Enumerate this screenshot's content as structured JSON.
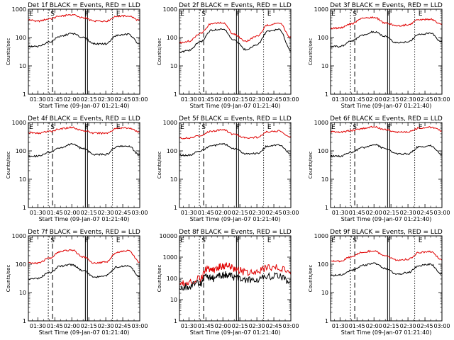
{
  "colors": {
    "events": "#000000",
    "lld": "#e00000",
    "background": "#ffffff"
  },
  "chart_data": [
    {
      "type": "line",
      "title": "Det 1f BLACK = Events, RED = LLD",
      "xlabel": "Start Time (09-Jan-07 01:21:40)",
      "ylabel": "Counts/sec",
      "xlim": [
        "01:21:40",
        "03:00"
      ],
      "xticks": [
        "01:30",
        "01:45",
        "02:00",
        "02:15",
        "02:30",
        "02:45",
        "03:00"
      ],
      "yscale": "log",
      "ylim": [
        1,
        1000
      ],
      "yticks": [
        "1",
        "10",
        "100",
        "1000"
      ],
      "markers": [
        {
          "time": "01:21:40",
          "label": "E"
        },
        {
          "time": "01:43",
          "label": "S"
        },
        {
          "time": "02:12",
          "label": "F"
        },
        {
          "time": "02:41",
          "label": "E"
        }
      ],
      "series": [
        {
          "color": "#e00000",
          "x": [
            "01:22",
            "01:30",
            "01:40",
            "01:50",
            "02:00",
            "02:10",
            "02:20",
            "02:30",
            "02:40",
            "02:50",
            "03:00"
          ],
          "values": [
            420,
            380,
            450,
            570,
            650,
            500,
            380,
            380,
            560,
            580,
            400
          ]
        },
        {
          "color": "#000000",
          "x": [
            "01:22",
            "01:30",
            "01:40",
            "01:50",
            "02:00",
            "02:10",
            "02:20",
            "02:30",
            "02:40",
            "02:50",
            "03:00"
          ],
          "values": [
            48,
            48,
            70,
            110,
            140,
            100,
            60,
            60,
            120,
            130,
            60
          ]
        }
      ]
    },
    {
      "type": "line",
      "title": "Det 2f BLACK = Events, RED = LLD",
      "xlabel": "Start Time (09-Jan-07 01:21:40)",
      "ylabel": "Counts/sec",
      "xlim": [
        "01:21:40",
        "03:00"
      ],
      "xticks": [
        "01:30",
        "01:45",
        "02:00",
        "02:15",
        "02:30",
        "02:45",
        "03:00"
      ],
      "yscale": "log",
      "ylim": [
        1,
        1000
      ],
      "yticks": [
        "1",
        "10",
        "100",
        "1000"
      ],
      "markers": [
        {
          "time": "01:21:40",
          "label": "E"
        },
        {
          "time": "01:43",
          "label": "S"
        },
        {
          "time": "02:12",
          "label": "F"
        },
        {
          "time": "02:41",
          "label": "E"
        }
      ],
      "series": [
        {
          "color": "#e00000",
          "x": [
            "01:22",
            "01:30",
            "01:40",
            "01:50",
            "02:00",
            "02:10",
            "02:20",
            "02:30",
            "02:40",
            "02:50",
            "03:00"
          ],
          "values": [
            65,
            75,
            140,
            310,
            330,
            130,
            75,
            110,
            280,
            320,
            100
          ]
        },
        {
          "color": "#000000",
          "x": [
            "01:22",
            "01:30",
            "01:40",
            "01:50",
            "02:00",
            "02:10",
            "02:20",
            "02:30",
            "02:40",
            "02:50",
            "03:00"
          ],
          "values": [
            30,
            35,
            70,
            180,
            200,
            80,
            38,
            55,
            170,
            190,
            35
          ]
        }
      ]
    },
    {
      "type": "line",
      "title": "Det 3f BLACK = Events, RED = LLD",
      "xlabel": "Start Time (09-Jan-07 01:21:40)",
      "ylabel": "Counts/sec",
      "xlim": [
        "01:21:40",
        "03:00"
      ],
      "xticks": [
        "01:30",
        "01:45",
        "02:00",
        "02:15",
        "02:30",
        "02:45",
        "03:00"
      ],
      "yscale": "log",
      "ylim": [
        1,
        1000
      ],
      "yticks": [
        "1",
        "10",
        "100",
        "1000"
      ],
      "markers": [
        {
          "time": "01:21:40",
          "label": "E"
        },
        {
          "time": "01:43",
          "label": "S"
        },
        {
          "time": "02:12",
          "label": "F"
        },
        {
          "time": "02:41",
          "label": "E"
        }
      ],
      "series": [
        {
          "color": "#e00000",
          "x": [
            "01:22",
            "01:30",
            "01:40",
            "01:50",
            "02:00",
            "02:10",
            "02:20",
            "02:30",
            "02:40",
            "02:50",
            "03:00"
          ],
          "values": [
            210,
            220,
            300,
            480,
            520,
            330,
            260,
            280,
            420,
            450,
            280
          ]
        },
        {
          "color": "#000000",
          "x": [
            "01:22",
            "01:30",
            "01:40",
            "01:50",
            "02:00",
            "02:10",
            "02:20",
            "02:30",
            "02:40",
            "02:50",
            "03:00"
          ],
          "values": [
            48,
            48,
            75,
            120,
            160,
            110,
            65,
            70,
            130,
            140,
            70
          ]
        }
      ]
    },
    {
      "type": "line",
      "title": "Det 4f BLACK = Events, RED = LLD",
      "xlabel": "Start Time (09-Jan-07 01:21:40)",
      "ylabel": "Counts/sec",
      "xlim": [
        "01:21:40",
        "03:00"
      ],
      "xticks": [
        "01:30",
        "01:45",
        "02:00",
        "02:15",
        "02:30",
        "02:45",
        "03:00"
      ],
      "yscale": "log",
      "ylim": [
        1,
        1000
      ],
      "yticks": [
        "1",
        "10",
        "100",
        "1000"
      ],
      "markers": [
        {
          "time": "01:21:40",
          "label": "E"
        },
        {
          "time": "01:43",
          "label": "S"
        },
        {
          "time": "02:12",
          "label": "F"
        },
        {
          "time": "02:41",
          "label": "E"
        }
      ],
      "series": [
        {
          "color": "#e00000",
          "x": [
            "01:22",
            "01:30",
            "01:40",
            "01:50",
            "02:00",
            "02:10",
            "02:20",
            "02:30",
            "02:40",
            "02:50",
            "03:00"
          ],
          "values": [
            440,
            420,
            480,
            600,
            680,
            520,
            420,
            420,
            620,
            650,
            450
          ]
        },
        {
          "color": "#000000",
          "x": [
            "01:22",
            "01:30",
            "01:40",
            "01:50",
            "02:00",
            "02:10",
            "02:20",
            "02:30",
            "02:40",
            "02:50",
            "03:00"
          ],
          "values": [
            65,
            65,
            90,
            130,
            170,
            120,
            75,
            75,
            140,
            150,
            70
          ]
        }
      ]
    },
    {
      "type": "line",
      "title": "Det 5f BLACK = Events, RED = LLD",
      "xlabel": "Start Time (09-Jan-07 01:21:40)",
      "ylabel": "Counts/sec",
      "xlim": [
        "01:21:40",
        "03:00"
      ],
      "xticks": [
        "01:30",
        "01:45",
        "02:00",
        "02:15",
        "02:30",
        "02:45",
        "03:00"
      ],
      "yscale": "log",
      "ylim": [
        1,
        1000
      ],
      "yticks": [
        "1",
        "10",
        "100",
        "1000"
      ],
      "markers": [
        {
          "time": "01:21:40",
          "label": "E"
        },
        {
          "time": "01:43",
          "label": "S"
        },
        {
          "time": "02:12",
          "label": "F"
        },
        {
          "time": "02:41",
          "label": "E"
        }
      ],
      "series": [
        {
          "color": "#e00000",
          "x": [
            "01:22",
            "01:30",
            "01:40",
            "01:50",
            "02:00",
            "02:10",
            "02:20",
            "02:30",
            "02:40",
            "02:50",
            "03:00"
          ],
          "values": [
            280,
            280,
            350,
            500,
            560,
            380,
            290,
            300,
            480,
            500,
            300
          ]
        },
        {
          "color": "#000000",
          "x": [
            "01:22",
            "01:30",
            "01:40",
            "01:50",
            "02:00",
            "02:10",
            "02:20",
            "02:30",
            "02:40",
            "02:50",
            "03:00"
          ],
          "values": [
            70,
            70,
            100,
            150,
            180,
            120,
            80,
            80,
            150,
            160,
            80
          ]
        }
      ]
    },
    {
      "type": "line",
      "title": "Det 6f BLACK = Events, RED = LLD",
      "xlabel": "Start Time (09-Jan-07 01:21:40)",
      "ylabel": "Counts/sec",
      "xlim": [
        "01:21:40",
        "03:00"
      ],
      "xticks": [
        "01:30",
        "01:45",
        "02:00",
        "02:15",
        "02:30",
        "02:45",
        "03:00"
      ],
      "yscale": "log",
      "ylim": [
        1,
        1000
      ],
      "yticks": [
        "1",
        "10",
        "100",
        "1000"
      ],
      "markers": [
        {
          "time": "01:21:40",
          "label": "E"
        },
        {
          "time": "01:43",
          "label": "S"
        },
        {
          "time": "02:12",
          "label": "F"
        },
        {
          "time": "02:41",
          "label": "E"
        }
      ],
      "series": [
        {
          "color": "#e00000",
          "x": [
            "01:22",
            "01:30",
            "01:40",
            "01:50",
            "02:00",
            "02:10",
            "02:20",
            "02:30",
            "02:40",
            "02:50",
            "03:00"
          ],
          "values": [
            480,
            460,
            520,
            620,
            700,
            560,
            460,
            460,
            640,
            680,
            520
          ]
        },
        {
          "color": "#000000",
          "x": [
            "01:22",
            "01:30",
            "01:40",
            "01:50",
            "02:00",
            "02:10",
            "02:20",
            "02:30",
            "02:40",
            "02:50",
            "03:00"
          ],
          "values": [
            65,
            65,
            90,
            130,
            170,
            120,
            78,
            78,
            140,
            150,
            75
          ]
        }
      ]
    },
    {
      "type": "line",
      "title": "Det 7f BLACK = Events, RED = LLD",
      "xlabel": "Start Time (09-Jan-07 01:21:40)",
      "ylabel": "Counts/sec",
      "xlim": [
        "01:21:40",
        "03:00"
      ],
      "xticks": [
        "01:30",
        "01:45",
        "02:00",
        "02:15",
        "02:30",
        "02:45",
        "03:00"
      ],
      "yscale": "log",
      "ylim": [
        1,
        1000
      ],
      "yticks": [
        "1",
        "10",
        "100",
        "1000"
      ],
      "markers": [
        {
          "time": "01:21:40",
          "label": "E"
        },
        {
          "time": "01:43",
          "label": "S"
        },
        {
          "time": "02:12",
          "label": "F"
        },
        {
          "time": "02:41",
          "label": "E"
        }
      ],
      "series": [
        {
          "color": "#e00000",
          "x": [
            "01:22",
            "01:30",
            "01:40",
            "01:50",
            "02:00",
            "02:10",
            "02:20",
            "02:30",
            "02:40",
            "02:50",
            "03:00"
          ],
          "values": [
            110,
            110,
            160,
            280,
            320,
            180,
            110,
            120,
            260,
            300,
            120
          ]
        },
        {
          "color": "#000000",
          "x": [
            "01:22",
            "01:30",
            "01:40",
            "01:50",
            "02:00",
            "02:10",
            "02:20",
            "02:30",
            "02:40",
            "02:50",
            "03:00"
          ],
          "values": [
            30,
            32,
            50,
            85,
            95,
            60,
            35,
            40,
            80,
            90,
            35
          ]
        }
      ]
    },
    {
      "type": "line",
      "title": "Det 8f BLACK = Events, RED = LLD",
      "xlabel": "Start Time (09-Jan-07 01:21:40)",
      "ylabel": "Counts/sec",
      "xlim": [
        "01:21:40",
        "03:00"
      ],
      "xticks": [
        "01:30",
        "01:45",
        "02:00",
        "02:15",
        "02:30",
        "02:45",
        "03:00"
      ],
      "yscale": "log",
      "ylim": [
        1,
        10000
      ],
      "yticks": [
        "1",
        "10",
        "100",
        "1000",
        "10000"
      ],
      "markers": [
        {
          "time": "01:21:40",
          "label": "E"
        },
        {
          "time": "01:43",
          "label": "S"
        },
        {
          "time": "02:12",
          "label": "F"
        },
        {
          "time": "02:41",
          "label": "E"
        }
      ],
      "series": [
        {
          "color": "#e00000",
          "x": [
            "01:22",
            "01:30",
            "01:40",
            "01:46",
            "01:52",
            "01:58",
            "02:04",
            "02:10",
            "02:20",
            "02:30",
            "02:40",
            "02:50",
            "03:00"
          ],
          "values": [
            60,
            65,
            100,
            300,
            250,
            350,
            400,
            280,
            200,
            220,
            300,
            320,
            150
          ]
        },
        {
          "color": "#000000",
          "x": [
            "01:22",
            "01:30",
            "01:40",
            "01:46",
            "01:52",
            "01:58",
            "02:04",
            "02:10",
            "02:20",
            "02:30",
            "02:40",
            "02:50",
            "03:00"
          ],
          "values": [
            40,
            42,
            60,
            120,
            100,
            130,
            150,
            110,
            80,
            90,
            120,
            130,
            60
          ]
        }
      ]
    },
    {
      "type": "line",
      "title": "Det 9f BLACK = Events, RED = LLD",
      "xlabel": "Start Time (09-Jan-07 01:21:40)",
      "ylabel": "Counts/sec",
      "xlim": [
        "01:21:40",
        "03:00"
      ],
      "xticks": [
        "01:30",
        "01:45",
        "02:00",
        "02:15",
        "02:30",
        "02:45",
        "03:00"
      ],
      "yscale": "log",
      "ylim": [
        1,
        1000
      ],
      "yticks": [
        "1",
        "10",
        "100",
        "1000"
      ],
      "markers": [
        {
          "time": "01:21:40",
          "label": "E"
        },
        {
          "time": "01:43",
          "label": "S"
        },
        {
          "time": "02:12",
          "label": "F"
        },
        {
          "time": "02:41",
          "label": "E"
        }
      ],
      "series": [
        {
          "color": "#e00000",
          "x": [
            "01:22",
            "01:30",
            "01:40",
            "01:50",
            "02:00",
            "02:10",
            "02:20",
            "02:30",
            "02:40",
            "02:50",
            "03:00"
          ],
          "values": [
            130,
            130,
            180,
            270,
            300,
            190,
            140,
            150,
            260,
            280,
            140
          ]
        },
        {
          "color": "#000000",
          "x": [
            "01:22",
            "01:30",
            "01:40",
            "01:50",
            "02:00",
            "02:10",
            "02:20",
            "02:30",
            "02:40",
            "02:50",
            "03:00"
          ],
          "values": [
            40,
            42,
            60,
            90,
            110,
            70,
            45,
            50,
            90,
            100,
            45
          ]
        }
      ]
    }
  ]
}
